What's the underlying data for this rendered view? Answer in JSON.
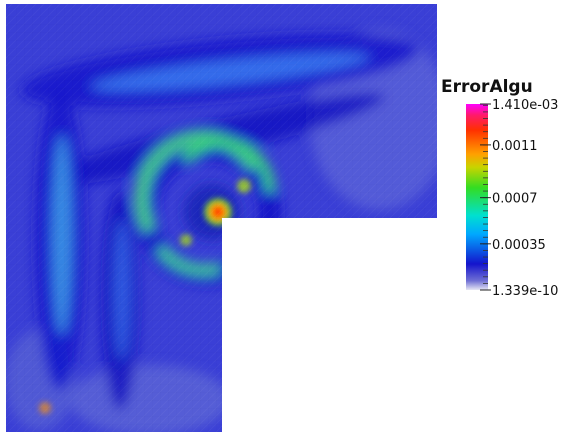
{
  "chart_data": {
    "type": "heatmap",
    "title": "",
    "colorbar": {
      "title": "ErrorAlgu",
      "min": 1.339e-10,
      "max": 0.00141,
      "labels": [
        {
          "text": "1.410e-03",
          "value": 0.00141
        },
        {
          "text": "0.0011",
          "value": 0.0011
        },
        {
          "text": "0.0007",
          "value": 0.0007
        },
        {
          "text": "0.00035",
          "value": 0.00035
        },
        {
          "text": "1.339e-10",
          "value": 1.339e-10
        }
      ]
    },
    "domain_shape": "L-shaped (upper-right quadrant removed)",
    "colormap": "rainbow (blue-cyan-green-yellow-red-magenta)",
    "peak_error_location": "re-entrant corner",
    "background_level": "low error (blue) across most of domain"
  }
}
